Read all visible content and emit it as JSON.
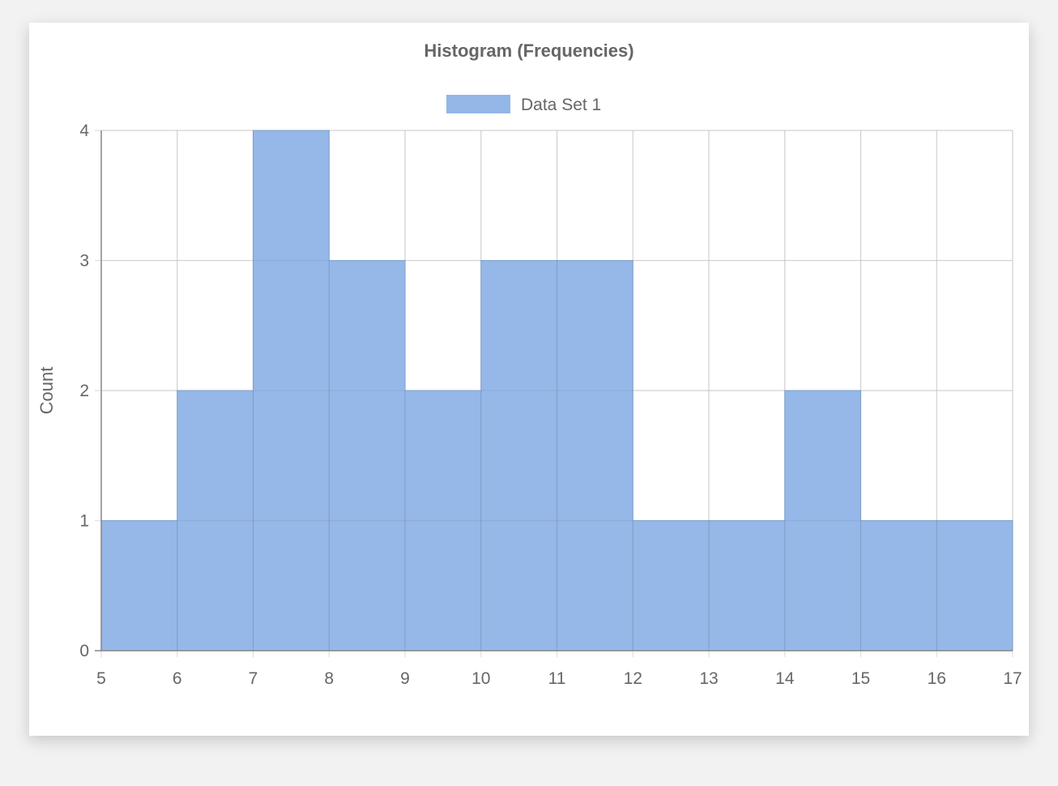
{
  "chart_data": {
    "type": "bar",
    "title": "Histogram (Frequencies)",
    "ylabel": "Count",
    "xlabel": "",
    "legend": "top",
    "grid": true,
    "bin_edges": [
      5,
      6,
      7,
      8,
      9,
      10,
      11,
      12,
      13,
      14,
      15,
      16,
      17
    ],
    "x_ticks": [
      "5",
      "6",
      "7",
      "8",
      "9",
      "10",
      "11",
      "12",
      "13",
      "14",
      "15",
      "16",
      "17"
    ],
    "y_ticks": [
      "0",
      "1",
      "2",
      "3",
      "4"
    ],
    "xlim": [
      5,
      17
    ],
    "ylim": [
      0,
      4
    ],
    "series": [
      {
        "name": "Data Set 1",
        "color": "#93b7e8",
        "values": [
          1,
          2,
          4,
          3,
          2,
          3,
          3,
          1,
          1,
          2,
          1,
          1
        ]
      }
    ]
  }
}
